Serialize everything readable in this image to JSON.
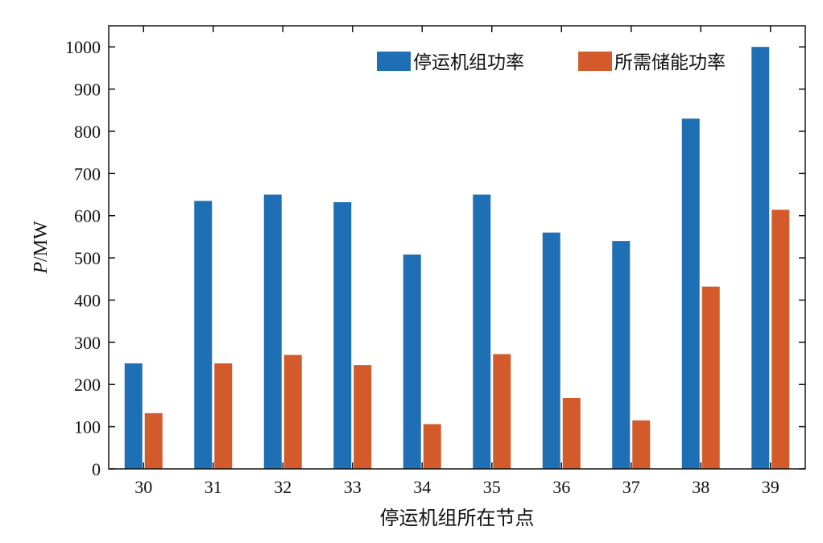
{
  "chart_data": {
    "type": "bar",
    "categories": [
      "30",
      "31",
      "32",
      "33",
      "34",
      "35",
      "36",
      "37",
      "38",
      "39"
    ],
    "series": [
      {
        "name": "停运机组功率",
        "values": [
          250,
          635,
          650,
          632,
          508,
          650,
          560,
          540,
          830,
          1000
        ],
        "color": "#1f6fb4"
      },
      {
        "name": "所需储能功率",
        "values": [
          132,
          250,
          270,
          246,
          106,
          272,
          168,
          115,
          432,
          614
        ],
        "color": "#d35a2b"
      }
    ],
    "xlabel": "停运机组所在节点",
    "ylabel": {
      "italic": "P",
      "rest": "/MW"
    },
    "ylim": [
      0,
      1050
    ],
    "yticks": [
      0,
      100,
      200,
      300,
      400,
      500,
      600,
      700,
      800,
      900,
      1000
    ],
    "grid": false,
    "legend": "top-right"
  }
}
